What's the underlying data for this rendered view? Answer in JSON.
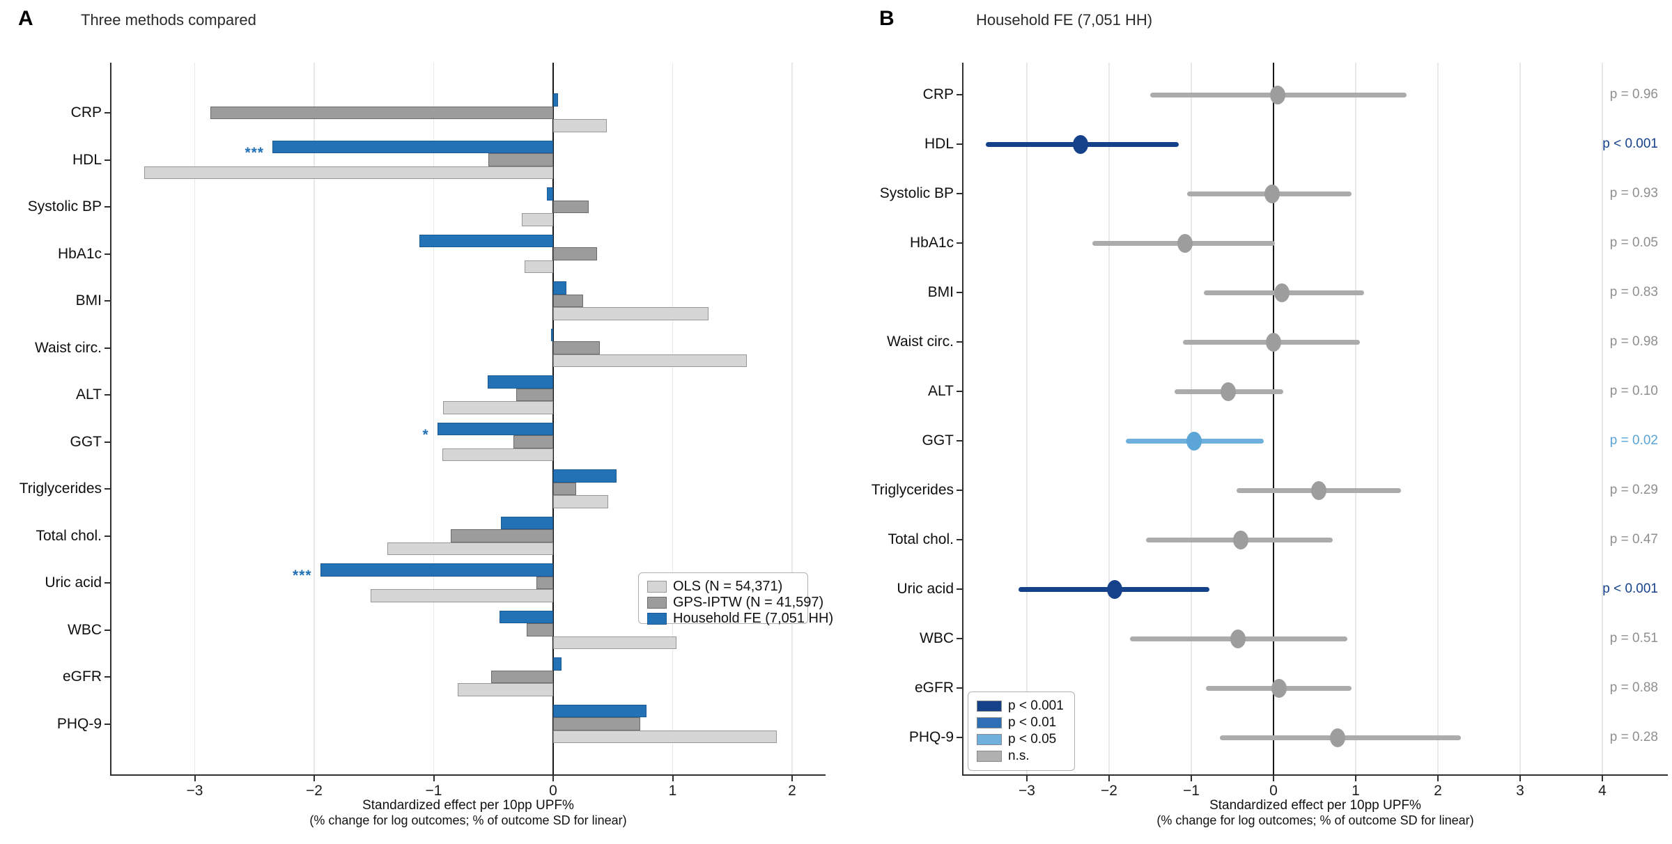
{
  "figure": {
    "panels": [
      {
        "letter": "A",
        "title": "Three methods compared"
      },
      {
        "letter": "B",
        "title": "Household FE (7,051 HH)"
      }
    ]
  },
  "colors": {
    "fe_blue": "#2272b5",
    "fe_blue_edge": "#1a5a96",
    "gray_dark": "#9c9c9c",
    "gray_dark_edge": "#6a6a6a",
    "gray_light": "#d6d6d6",
    "gray_light_edge": "#979797",
    "sig_p001": "#15418a",
    "sig_p01": "#2e6fb6",
    "sig_p05": "#6fb0dc",
    "sig_ns": "#ababab",
    "ns_marker": "#9d9d9d",
    "p_text_ns": "#8f8f8f",
    "p_text_p05": "#5aa4d6",
    "gridline": "#e8e8e8",
    "spine": "#2f2f2f",
    "zero_line": "#161616"
  },
  "chart_data": [
    {
      "type": "bar",
      "panel": "A",
      "orientation": "horizontal",
      "title": "Three methods compared",
      "xlabel_line1": "Standardized effect per 10pp UPF%",
      "xlabel_line2": "(% change for log outcomes; % of outcome SD for linear)",
      "xticks": [
        -3,
        -2,
        -1,
        0,
        1,
        2
      ],
      "xlim": [
        -3.7,
        2.28
      ],
      "grid": true,
      "legend_position": "middle-right",
      "categories": [
        "CRP",
        "HDL",
        "Systolic BP",
        "HbA1c",
        "BMI",
        "Waist circ.",
        "ALT",
        "GGT",
        "Triglycerides",
        "Total chol.",
        "Uric acid",
        "WBC",
        "eGFR",
        "PHQ-9"
      ],
      "series": [
        {
          "name": "OLS (N = 54,371)",
          "color": "#d6d6d6",
          "edge": "#979797",
          "values": [
            0.45,
            -3.42,
            -0.26,
            -0.24,
            1.3,
            1.62,
            -0.92,
            -0.93,
            0.46,
            -1.39,
            -1.53,
            1.03,
            -0.8,
            1.87
          ]
        },
        {
          "name": "GPS-IPTW (N = 41,597)",
          "color": "#9c9c9c",
          "edge": "#6a6a6a",
          "values": [
            -2.87,
            -0.54,
            0.3,
            0.37,
            0.25,
            0.39,
            -0.31,
            -0.33,
            0.19,
            -0.86,
            -0.14,
            -0.22,
            -0.52,
            0.73
          ]
        },
        {
          "name": "Household FE (7,051 HH)",
          "color": "#2272b5",
          "edge": "#1a5a96",
          "values": [
            0.04,
            -2.35,
            -0.05,
            -1.12,
            0.11,
            -0.02,
            -0.55,
            -0.97,
            0.53,
            -0.44,
            -1.95,
            -0.45,
            0.07,
            0.78
          ]
        }
      ],
      "significance_on_series": "Household FE (7,051 HH)",
      "significance": [
        {
          "category": "HDL",
          "stars": "***"
        },
        {
          "category": "GGT",
          "stars": "*"
        },
        {
          "category": "Uric acid",
          "stars": "***"
        }
      ]
    },
    {
      "type": "scatter",
      "panel": "B",
      "subtype": "forest-plot",
      "title": "Household FE (7,051 HH)",
      "xlabel_line1": "Standardized effect per 10pp UPF%",
      "xlabel_line2": "(% change for log outcomes; % of outcome SD for linear)",
      "xticks": [
        -3,
        -2,
        -1,
        0,
        1,
        2,
        3,
        4
      ],
      "xlim": [
        -3.78,
        4.8
      ],
      "grid": true,
      "legend_position": "bottom-left",
      "categories": [
        "CRP",
        "HDL",
        "Systolic BP",
        "HbA1c",
        "BMI",
        "Waist circ.",
        "ALT",
        "GGT",
        "Triglycerides",
        "Total chol.",
        "Uric acid",
        "WBC",
        "eGFR",
        "PHQ-9"
      ],
      "points": [
        {
          "category": "CRP",
          "estimate": 0.05,
          "ci_low": -1.5,
          "ci_high": 1.62,
          "p_label": "p = 0.96",
          "sig": "ns"
        },
        {
          "category": "HDL",
          "estimate": -2.35,
          "ci_low": -3.5,
          "ci_high": -1.15,
          "p_label": "p < 0.001",
          "sig": "p001"
        },
        {
          "category": "Systolic BP",
          "estimate": -0.02,
          "ci_low": -1.05,
          "ci_high": 0.95,
          "p_label": "p = 0.93",
          "sig": "ns"
        },
        {
          "category": "HbA1c",
          "estimate": -1.08,
          "ci_low": -2.2,
          "ci_high": 0.02,
          "p_label": "p = 0.05",
          "sig": "ns"
        },
        {
          "category": "BMI",
          "estimate": 0.1,
          "ci_low": -0.85,
          "ci_high": 1.1,
          "p_label": "p = 0.83",
          "sig": "ns"
        },
        {
          "category": "Waist circ.",
          "estimate": 0.0,
          "ci_low": -1.1,
          "ci_high": 1.05,
          "p_label": "p = 0.98",
          "sig": "ns"
        },
        {
          "category": "ALT",
          "estimate": -0.55,
          "ci_low": -1.2,
          "ci_high": 0.12,
          "p_label": "p = 0.10",
          "sig": "ns"
        },
        {
          "category": "GGT",
          "estimate": -0.97,
          "ci_low": -1.8,
          "ci_high": -0.12,
          "p_label": "p = 0.02",
          "sig": "p05"
        },
        {
          "category": "Triglycerides",
          "estimate": 0.55,
          "ci_low": -0.45,
          "ci_high": 1.55,
          "p_label": "p = 0.29",
          "sig": "ns"
        },
        {
          "category": "Total chol.",
          "estimate": -0.4,
          "ci_low": -1.55,
          "ci_high": 0.72,
          "p_label": "p = 0.47",
          "sig": "ns"
        },
        {
          "category": "Uric acid",
          "estimate": -1.93,
          "ci_low": -3.1,
          "ci_high": -0.78,
          "p_label": "p < 0.001",
          "sig": "p001"
        },
        {
          "category": "WBC",
          "estimate": -0.43,
          "ci_low": -1.75,
          "ci_high": 0.9,
          "p_label": "p = 0.51",
          "sig": "ns"
        },
        {
          "category": "eGFR",
          "estimate": 0.07,
          "ci_low": -0.82,
          "ci_high": 0.95,
          "p_label": "p = 0.88",
          "sig": "ns"
        },
        {
          "category": "PHQ-9",
          "estimate": 0.78,
          "ci_low": -0.65,
          "ci_high": 2.28,
          "p_label": "p = 0.28",
          "sig": "ns"
        }
      ],
      "legend": [
        {
          "label": "p < 0.001",
          "color": "#15418a"
        },
        {
          "label": "p < 0.01",
          "color": "#2e6fb6"
        },
        {
          "label": "p < 0.05",
          "color": "#6fb0dc"
        },
        {
          "label": "n.s.",
          "color": "#b0b0b0"
        }
      ]
    }
  ]
}
